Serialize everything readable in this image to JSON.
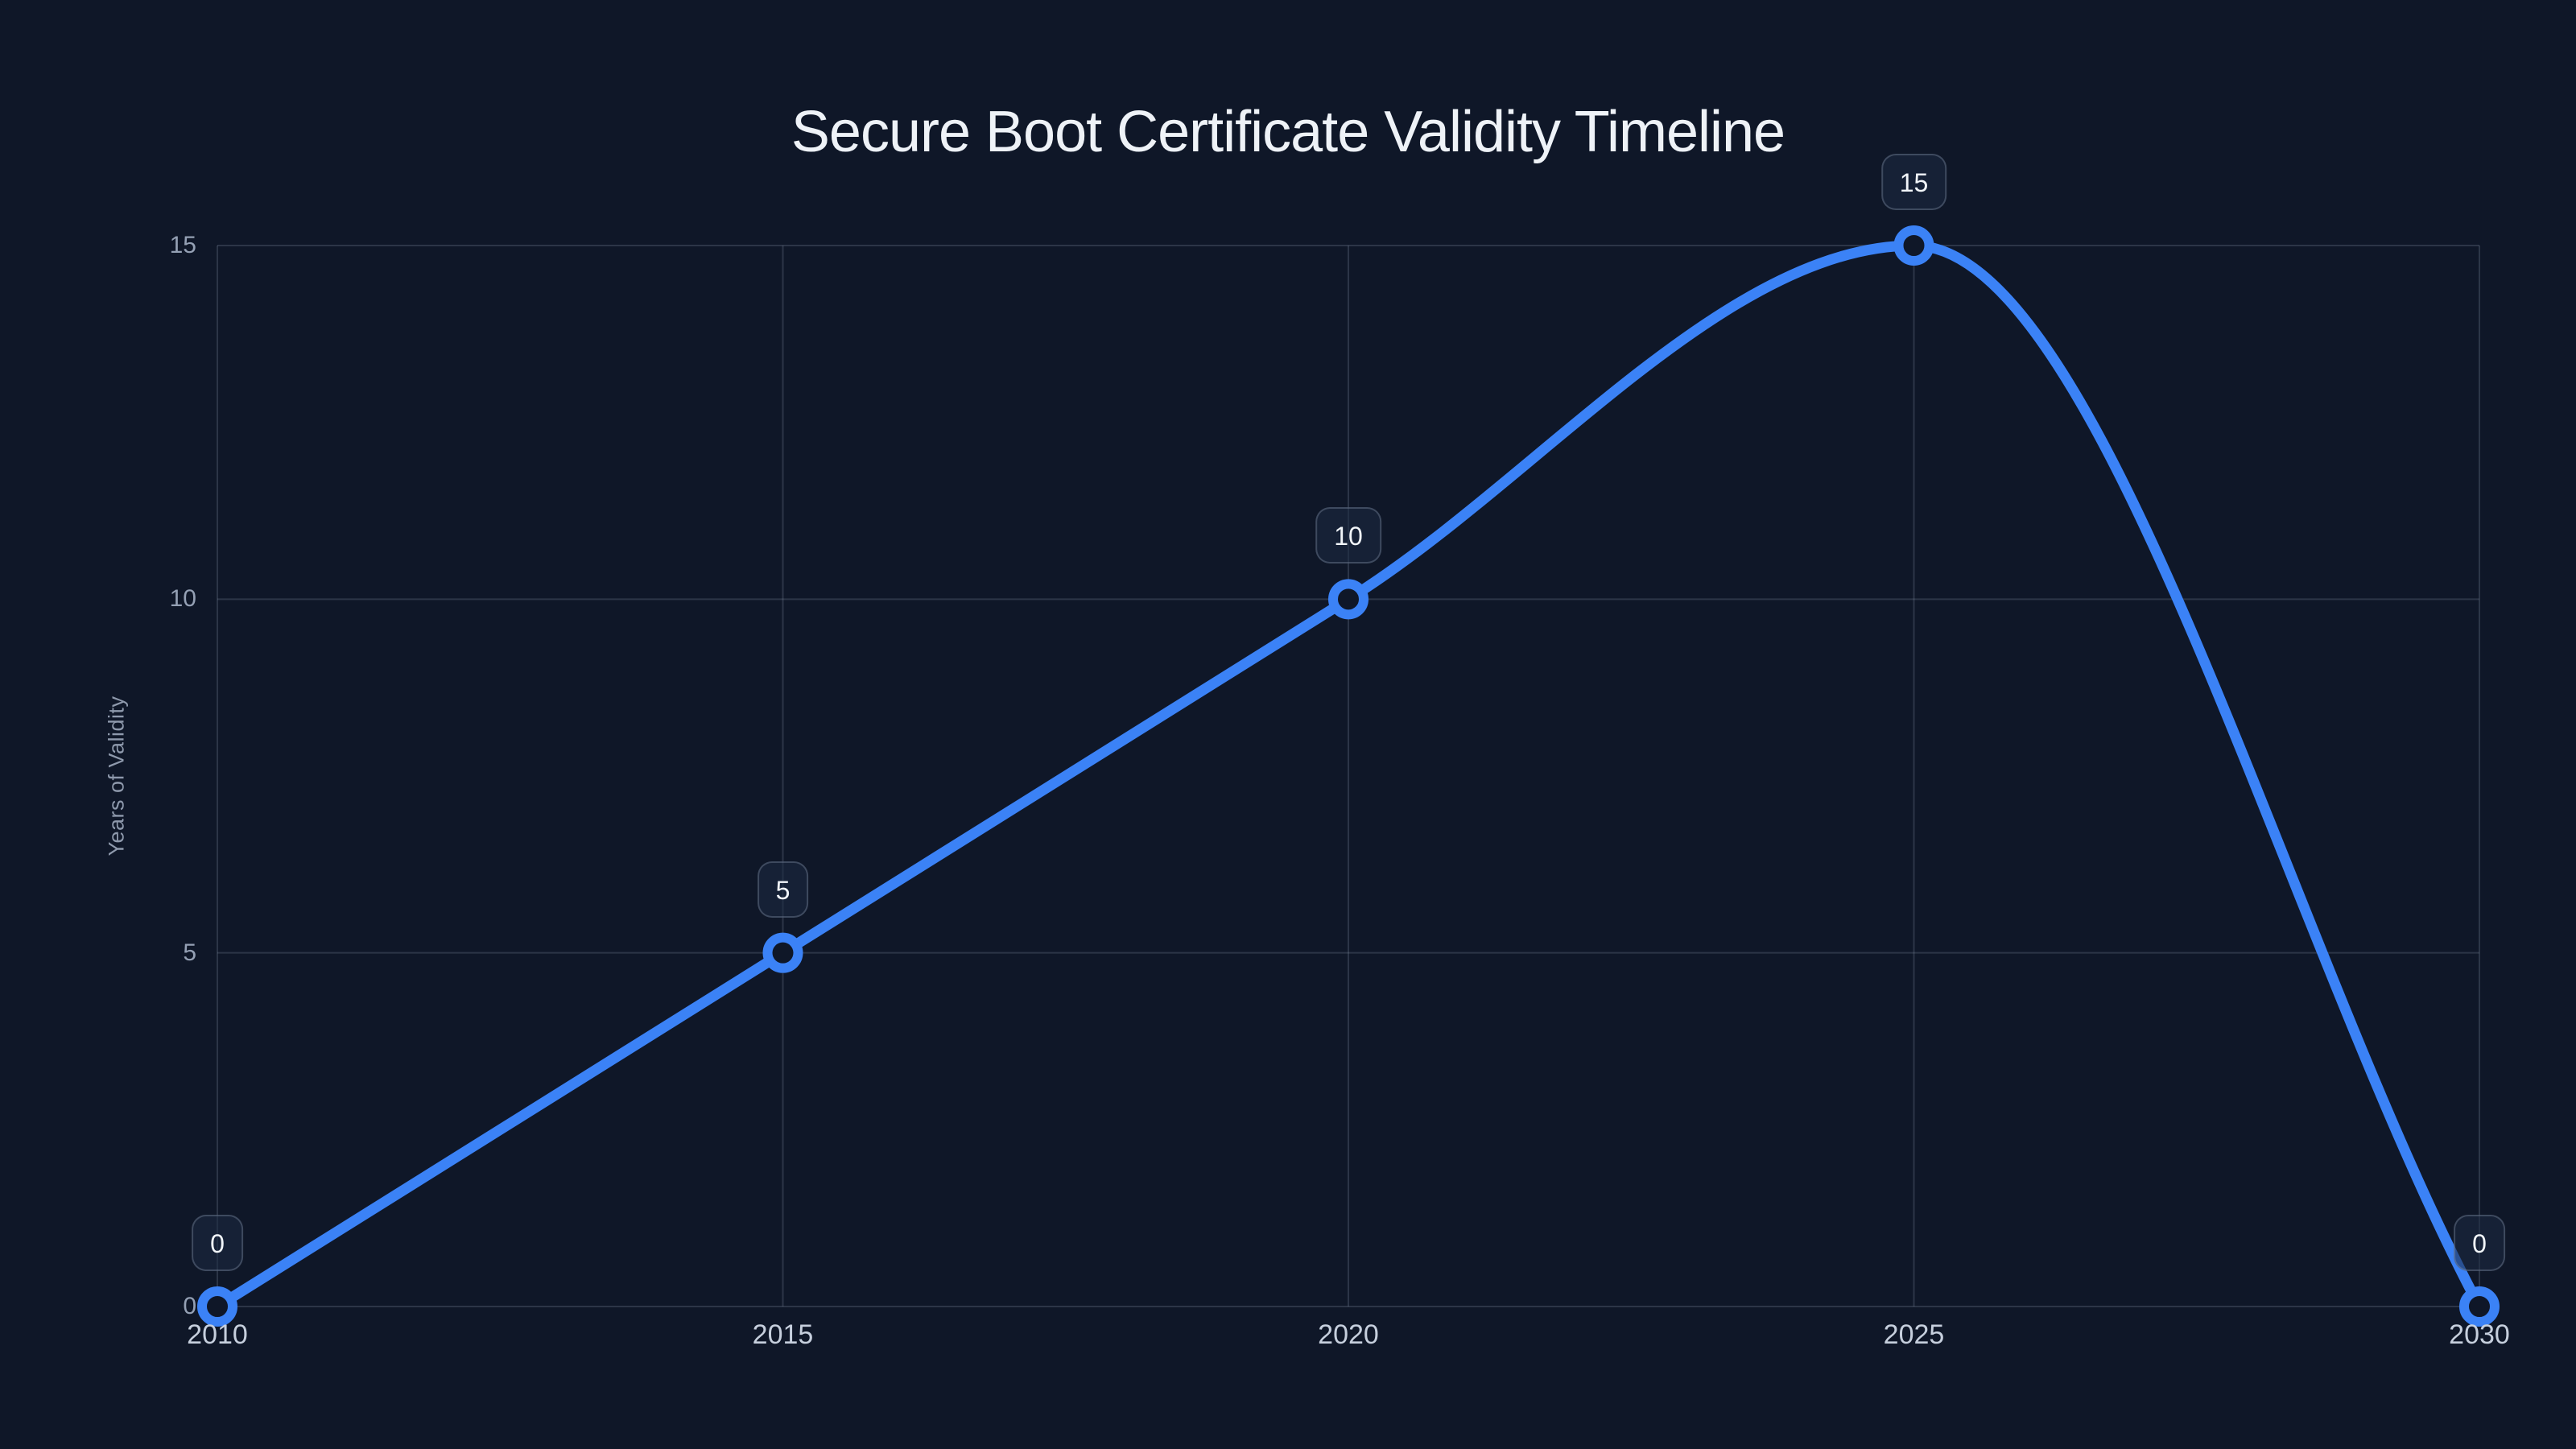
{
  "page": {
    "background": "#0f1728"
  },
  "title": "Secure Boot Certificate Validity Timeline",
  "chart_data": {
    "type": "line",
    "title": "Secure Boot Certificate Validity Timeline",
    "x": [
      2010,
      2015,
      2020,
      2025,
      2030
    ],
    "x_tick_labels": [
      "2010",
      "2015",
      "2020",
      "2025",
      "2030"
    ],
    "series": [
      {
        "name": "Years of Validity",
        "values": [
          0,
          5,
          10,
          15,
          0
        ]
      }
    ],
    "point_labels": [
      "0",
      "5",
      "10",
      "15",
      "0"
    ],
    "xlabel": "",
    "ylabel": "Years of Validity",
    "y_ticks": [
      0,
      5,
      10,
      15
    ],
    "y_tick_labels": [
      "0",
      "5",
      "10",
      "15"
    ],
    "xlim": [
      2010,
      2030
    ],
    "ylim": [
      0,
      15
    ],
    "grid": true,
    "curve": "monotone",
    "legend": "none",
    "colors": {
      "background": "#0f1728",
      "line": "#3b82f6",
      "marker_ring": "#3b82f6",
      "marker_fill": "#0f1728",
      "grid": "rgba(148,163,184,0.22)",
      "title_text": "#eef2f7",
      "x_tick_text": "#c6cfdd",
      "y_tick_text": "#94a0b4",
      "axis_title_text": "#8e99ac",
      "point_label_text": "#f1f5f9"
    }
  }
}
